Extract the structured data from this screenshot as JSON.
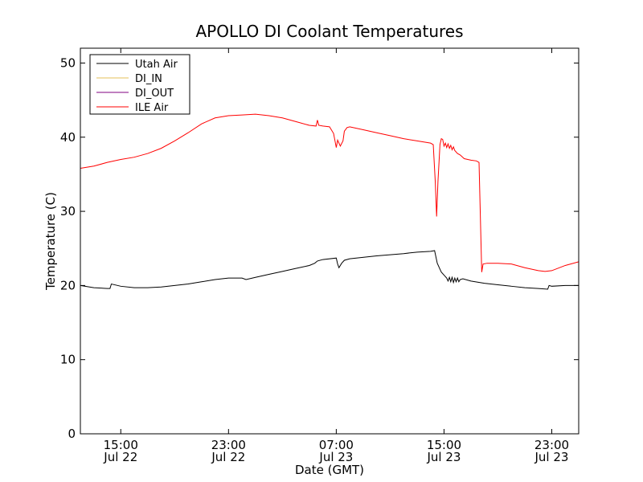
{
  "chart_data": {
    "type": "line",
    "title": "APOLLO DI Coolant Temperatures",
    "xlabel": "Date (GMT)",
    "ylabel": "Temperature (C)",
    "xlim": [
      0,
      37
    ],
    "ylim": [
      0,
      52
    ],
    "y_ticks": [
      0,
      10,
      20,
      30,
      40,
      50
    ],
    "x_ticks": [
      {
        "t": 3,
        "time": "15:00",
        "date": "Jul 22"
      },
      {
        "t": 11,
        "time": "23:00",
        "date": "Jul 22"
      },
      {
        "t": 19,
        "time": "07:00",
        "date": "Jul 23"
      },
      {
        "t": 27,
        "time": "15:00",
        "date": "Jul 23"
      },
      {
        "t": 35,
        "time": "23:00",
        "date": "Jul 23"
      }
    ],
    "legend_position": "top-left",
    "series": [
      {
        "name": "Utah Air",
        "color": "#000000",
        "points": [
          [
            0,
            20.0
          ],
          [
            1,
            19.7
          ],
          [
            2,
            19.6
          ],
          [
            2.2,
            19.6
          ],
          [
            2.3,
            20.2
          ],
          [
            3,
            19.9
          ],
          [
            4,
            19.7
          ],
          [
            5,
            19.7
          ],
          [
            6,
            19.8
          ],
          [
            8,
            20.2
          ],
          [
            9,
            20.5
          ],
          [
            10,
            20.8
          ],
          [
            11,
            21.0
          ],
          [
            12,
            21.0
          ],
          [
            12.3,
            20.8
          ],
          [
            13,
            21.1
          ],
          [
            14,
            21.5
          ],
          [
            15,
            21.9
          ],
          [
            16,
            22.3
          ],
          [
            17,
            22.7
          ],
          [
            17.4,
            23.0
          ],
          [
            17.6,
            23.3
          ],
          [
            18,
            23.5
          ],
          [
            19,
            23.7
          ],
          [
            19.1,
            22.9
          ],
          [
            19.2,
            22.4
          ],
          [
            19.4,
            23.0
          ],
          [
            19.6,
            23.4
          ],
          [
            20,
            23.6
          ],
          [
            22,
            24.0
          ],
          [
            24,
            24.3
          ],
          [
            25,
            24.5
          ],
          [
            26,
            24.6
          ],
          [
            26.3,
            24.7
          ],
          [
            26.5,
            23.0
          ],
          [
            26.8,
            21.8
          ],
          [
            27,
            21.4
          ],
          [
            27.2,
            21.0
          ],
          [
            27.3,
            20.6
          ],
          [
            27.4,
            21.1
          ],
          [
            27.5,
            20.5
          ],
          [
            27.6,
            21.1
          ],
          [
            27.7,
            20.4
          ],
          [
            27.8,
            21.0
          ],
          [
            27.9,
            20.5
          ],
          [
            28,
            21.0
          ],
          [
            28.1,
            20.5
          ],
          [
            28.2,
            20.8
          ],
          [
            28.4,
            20.9
          ],
          [
            29,
            20.6
          ],
          [
            30,
            20.3
          ],
          [
            31,
            20.1
          ],
          [
            32,
            19.9
          ],
          [
            33,
            19.7
          ],
          [
            34,
            19.6
          ],
          [
            34.7,
            19.5
          ],
          [
            34.8,
            20.0
          ],
          [
            35,
            19.9
          ],
          [
            36,
            20.0
          ],
          [
            37,
            20.0
          ]
        ]
      },
      {
        "name": "DI_IN",
        "color": "#e6c25a",
        "points": []
      },
      {
        "name": "DI_OUT",
        "color": "#800080",
        "points": []
      },
      {
        "name": "ILE Air",
        "color": "#ff0000",
        "points": [
          [
            0,
            35.8
          ],
          [
            1,
            36.1
          ],
          [
            2,
            36.6
          ],
          [
            3,
            37.0
          ],
          [
            4,
            37.3
          ],
          [
            5,
            37.8
          ],
          [
            6,
            38.5
          ],
          [
            7,
            39.5
          ],
          [
            8,
            40.6
          ],
          [
            9,
            41.8
          ],
          [
            10,
            42.6
          ],
          [
            11,
            42.9
          ],
          [
            12,
            43.0
          ],
          [
            13,
            43.1
          ],
          [
            14,
            42.9
          ],
          [
            15,
            42.6
          ],
          [
            16,
            42.1
          ],
          [
            17,
            41.6
          ],
          [
            17.5,
            41.5
          ],
          [
            17.6,
            42.3
          ],
          [
            17.7,
            41.6
          ],
          [
            18,
            41.5
          ],
          [
            18.5,
            41.4
          ],
          [
            18.8,
            40.5
          ],
          [
            19.0,
            38.6
          ],
          [
            19.1,
            39.6
          ],
          [
            19.3,
            38.8
          ],
          [
            19.5,
            39.5
          ],
          [
            19.6,
            40.8
          ],
          [
            19.8,
            41.3
          ],
          [
            20,
            41.4
          ],
          [
            21,
            41.0
          ],
          [
            22,
            40.6
          ],
          [
            23,
            40.2
          ],
          [
            24,
            39.8
          ],
          [
            25,
            39.5
          ],
          [
            26,
            39.2
          ],
          [
            26.2,
            39.0
          ],
          [
            26.35,
            34.0
          ],
          [
            26.45,
            29.3
          ],
          [
            26.55,
            34.0
          ],
          [
            26.7,
            39.0
          ],
          [
            26.8,
            39.8
          ],
          [
            26.9,
            39.7
          ],
          [
            27,
            38.8
          ],
          [
            27.1,
            39.2
          ],
          [
            27.2,
            38.6
          ],
          [
            27.3,
            39.1
          ],
          [
            27.4,
            38.5
          ],
          [
            27.5,
            38.9
          ],
          [
            27.6,
            38.3
          ],
          [
            27.7,
            38.7
          ],
          [
            27.8,
            38.2
          ],
          [
            28,
            37.8
          ],
          [
            28.2,
            37.6
          ],
          [
            28.5,
            37.1
          ],
          [
            29,
            36.9
          ],
          [
            29.4,
            36.8
          ],
          [
            29.6,
            36.6
          ],
          [
            29.8,
            21.8
          ],
          [
            29.9,
            22.9
          ],
          [
            30.2,
            23.0
          ],
          [
            31,
            23.0
          ],
          [
            32,
            22.9
          ],
          [
            33,
            22.4
          ],
          [
            34,
            22.0
          ],
          [
            34.5,
            21.9
          ],
          [
            35,
            22.0
          ],
          [
            36,
            22.7
          ],
          [
            37,
            23.2
          ]
        ]
      }
    ]
  }
}
